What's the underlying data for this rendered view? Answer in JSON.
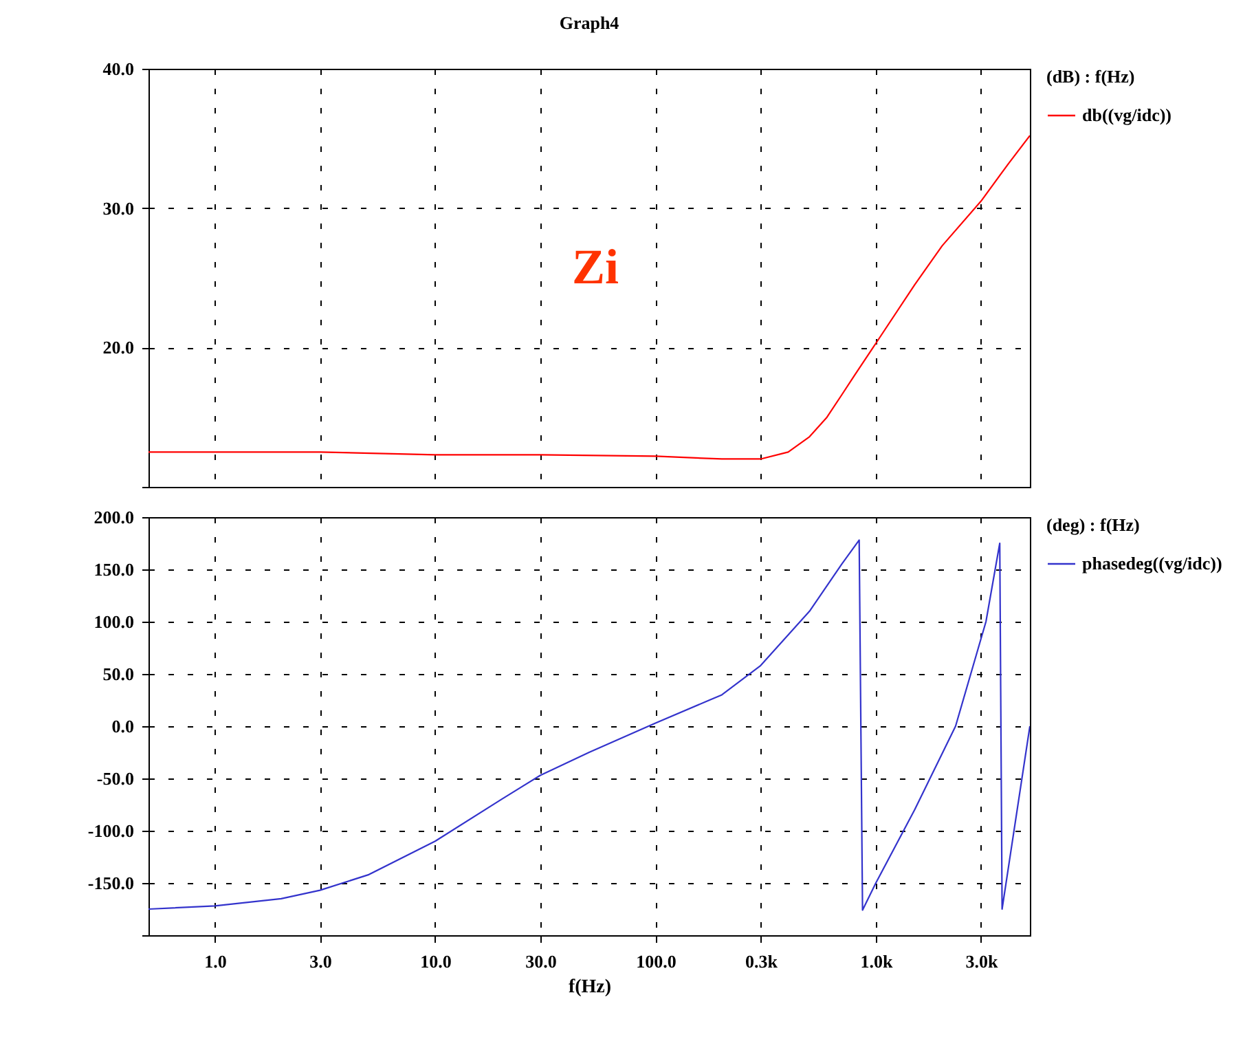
{
  "chart_data": [
    {
      "type": "line",
      "title": "Graph4",
      "legend_title": "(dB) : f(Hz)",
      "legend": "right",
      "grid": true,
      "log": "x",
      "tick_labels": "y",
      "annotations": [
        "Zi"
      ],
      "xlim": [
        0.5,
        5000
      ],
      "xticks": [
        {
          "value": 1,
          "label": null
        },
        {
          "value": 3,
          "label": null
        },
        {
          "value": 10,
          "label": null
        },
        {
          "value": 30,
          "label": null
        },
        {
          "value": 100,
          "label": null
        },
        {
          "value": 300,
          "label": null
        },
        {
          "value": 1000,
          "label": null
        },
        {
          "value": 3000,
          "label": null
        }
      ],
      "ylim": [
        10,
        40
      ],
      "yticks": [
        {
          "value": 10,
          "label": null
        },
        {
          "value": 20,
          "label": "20.0"
        },
        {
          "value": 30,
          "label": "30.0"
        },
        {
          "value": 40,
          "label": "40.0"
        }
      ],
      "series": [
        {
          "name": "db((vg/idc))",
          "color": "#ff0000",
          "x": [
            0.5,
            3,
            10,
            30,
            100,
            200,
            300,
            400,
            500,
            600,
            700,
            800,
            1000,
            1500,
            2000,
            3000,
            4000,
            5000
          ],
          "values": [
            12.5,
            12.5,
            12.3,
            12.3,
            12.2,
            12.0,
            12.0,
            12.5,
            13.6,
            15.0,
            16.6,
            18.0,
            20.3,
            24.5,
            27.3,
            30.5,
            33.2,
            35.2
          ]
        }
      ]
    },
    {
      "type": "line",
      "legend_title": "(deg) : f(Hz)",
      "legend": "right",
      "grid": true,
      "log": "x",
      "xlabel": "f(Hz)",
      "xlim": [
        0.5,
        5000
      ],
      "xticks": [
        {
          "value": 1,
          "label": "1.0"
        },
        {
          "value": 3,
          "label": "3.0"
        },
        {
          "value": 10,
          "label": "10.0"
        },
        {
          "value": 30,
          "label": "30.0"
        },
        {
          "value": 100,
          "label": "100.0"
        },
        {
          "value": 300,
          "label": "0.3k"
        },
        {
          "value": 1000,
          "label": "1.0k"
        },
        {
          "value": 3000,
          "label": "3.0k"
        }
      ],
      "ylim": [
        -200,
        200
      ],
      "yticks": [
        {
          "value": -200,
          "label": null
        },
        {
          "value": -150,
          "label": "-150.0"
        },
        {
          "value": -100,
          "label": "-100.0"
        },
        {
          "value": -50,
          "label": "-50.0"
        },
        {
          "value": 0,
          "label": "0.0"
        },
        {
          "value": 50,
          "label": "50.0"
        },
        {
          "value": 100,
          "label": "100.0"
        },
        {
          "value": 150,
          "label": "150.0"
        },
        {
          "value": 200,
          "label": "200.0"
        }
      ],
      "series": [
        {
          "name": "phasedeg((vg/idc))",
          "color": "#3333cc",
          "x": [
            0.5,
            1,
            2,
            3,
            5,
            10,
            20,
            30,
            50,
            100,
            200,
            300,
            500,
            700,
            840,
            870,
            1000,
            1500,
            2300,
            3160,
            3650,
            3740,
            5000
          ],
          "values": [
            -175,
            -172,
            -165,
            -157,
            -142,
            -110,
            -70,
            -47,
            -25,
            3,
            30,
            58,
            110,
            155,
            178,
            -176,
            -150,
            -80,
            0,
            100,
            175,
            -175,
            0
          ]
        }
      ]
    }
  ]
}
